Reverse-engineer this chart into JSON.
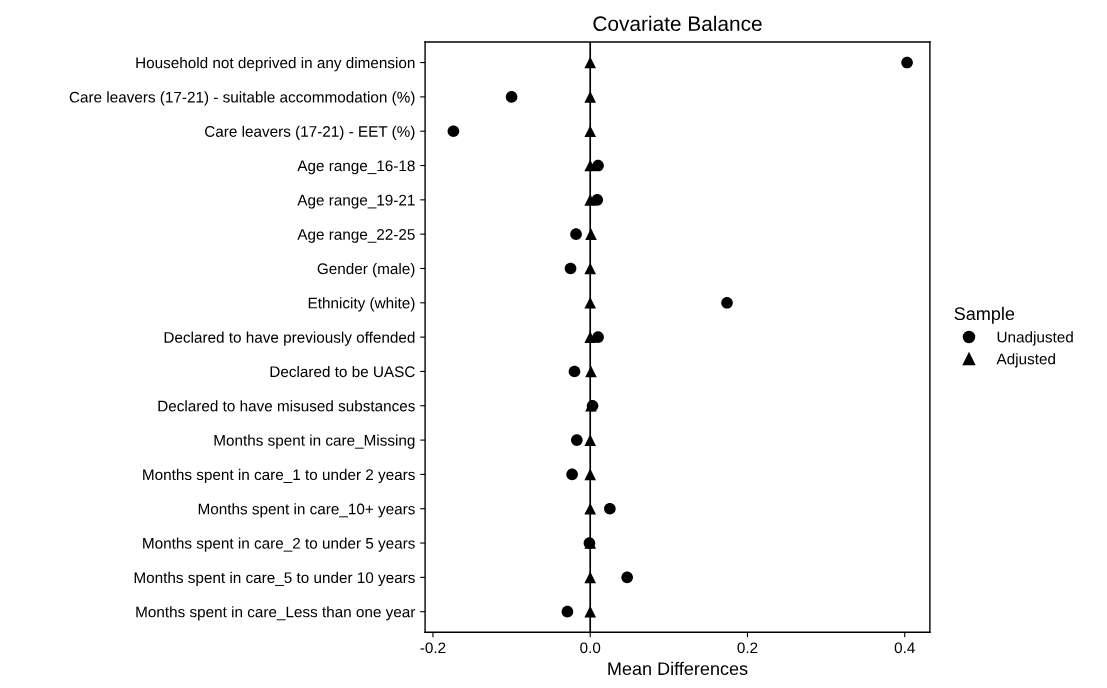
{
  "chart_data": {
    "type": "scatter",
    "title": "Covariate Balance",
    "xlabel": "Mean Differences",
    "legend_title": "Sample",
    "categories": [
      "Household not deprived in any dimension",
      "Care leavers (17-21) - suitable accommodation (%)",
      "Care leavers (17-21) - EET (%)",
      "Age range_16-18",
      "Age range_19-21",
      "Age range_22-25",
      "Gender (male)",
      "Ethnicity (white)",
      "Declared to have previously offended",
      "Declared to be UASC",
      "Declared to have misused substances",
      "Months spent in care_Missing",
      "Months spent in care_1 to under 2 years",
      "Months spent in care_10+ years",
      "Months spent in care_2 to under 5 years",
      "Months spent in care_5 to under 10 years",
      "Months spent in care_Less than one year"
    ],
    "orientation": "horizontal",
    "series": [
      {
        "name": "Unadjusted",
        "color": "#000000",
        "marker": "circle",
        "values": [
          0.403,
          -0.1,
          -0.174,
          0.01,
          0.009,
          -0.018,
          -0.025,
          0.174,
          0.01,
          -0.02,
          0.003,
          -0.017,
          -0.023,
          0.025,
          -0.001,
          0.047,
          -0.029
        ]
      },
      {
        "name": "Adjusted",
        "color": "#000000",
        "marker": "triangle",
        "values": [
          0,
          0,
          0,
          0,
          0,
          0.001,
          0,
          0,
          0,
          0.001,
          0.001,
          0,
          0,
          0,
          0,
          0,
          0
        ]
      }
    ],
    "xlim": [
      -0.21,
      0.432
    ],
    "xticks": [
      -0.2,
      {
        "value": 0,
        "label": "0.0"
      },
      0.2,
      0.4
    ],
    "ref_lines": [
      {
        "axis": "x",
        "value": 0,
        "color": "#000000"
      }
    ],
    "grid": false,
    "legend": "right"
  }
}
